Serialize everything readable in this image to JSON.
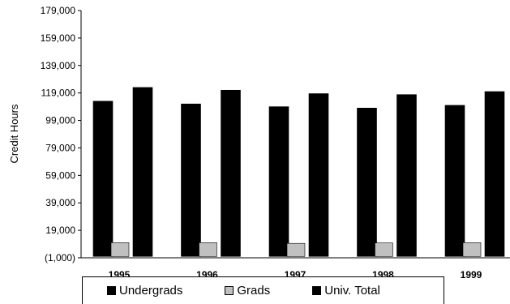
{
  "chart_data": {
    "type": "bar",
    "title": "",
    "xlabel": "",
    "ylabel": "Credit Hours",
    "ylim": [
      -1000,
      179000
    ],
    "yticks": [
      -1000,
      19000,
      39000,
      59000,
      79000,
      99000,
      119000,
      139000,
      159000,
      179000
    ],
    "ytick_labels": [
      "(1,000)",
      "19,000",
      "39,000",
      "59,000",
      "79,000",
      "99,000",
      "119,000",
      "139,000",
      "159,000",
      "179,000"
    ],
    "categories": [
      "1995",
      "1996",
      "1997",
      "1998",
      "1999"
    ],
    "series": [
      {
        "name": "Undergrads",
        "color": "#000000",
        "values": [
          113000,
          111000,
          109000,
          108000,
          110000
        ]
      },
      {
        "name": "Grads",
        "color": "#c0c0c0",
        "values": [
          10000,
          10000,
          9500,
          9800,
          10000
        ]
      },
      {
        "name": "Univ. Total",
        "color": "#000000",
        "values": [
          123000,
          121000,
          118500,
          117800,
          120000
        ]
      }
    ],
    "grid": false,
    "legend_position": "bottom"
  }
}
